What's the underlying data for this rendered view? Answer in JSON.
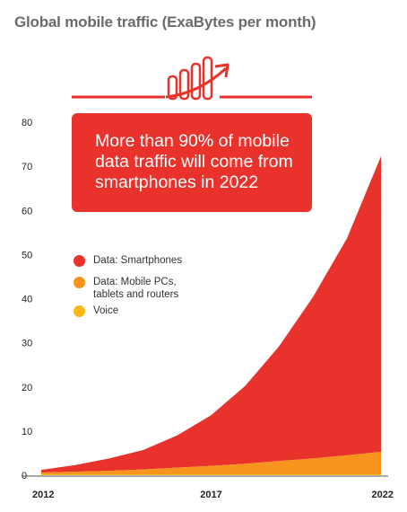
{
  "colors": {
    "smartphones": "#e8322b",
    "mobile_pcs": "#f7941d",
    "voice": "#fbb817",
    "icon": "#e8322b"
  },
  "icon": "growth-bar-chart-icon",
  "callout": {
    "text": "More than 90% of mobile data traffic will come from smartphones in 2022"
  },
  "chart_data": {
    "type": "area",
    "title": "Global mobile traffic (ExaBytes per month)",
    "xlabel": "",
    "ylabel": "",
    "x": [
      2012,
      2013,
      2014,
      2015,
      2016,
      2017,
      2018,
      2019,
      2020,
      2021,
      2022
    ],
    "x_tick_labels": [
      "2012",
      "2017",
      "2022"
    ],
    "y_tick_labels": [
      "0",
      "10",
      "20",
      "30",
      "40",
      "50",
      "60",
      "70",
      "80"
    ],
    "ylim": [
      0,
      80
    ],
    "stacked": true,
    "legend_position": "left-middle",
    "series": [
      {
        "name": "Voice",
        "values": [
          0.2,
          0.2,
          0.2,
          0.2,
          0.2,
          0.2,
          0.2,
          0.2,
          0.2,
          0.2,
          0.2
        ]
      },
      {
        "name": "Data: Mobile PCs,\ntablets and routers",
        "values": [
          0.4,
          0.6,
          0.8,
          1.1,
          1.5,
          1.9,
          2.4,
          3.0,
          3.6,
          4.3,
          5.1
        ]
      },
      {
        "name": "Data: Smartphones",
        "values": [
          0.6,
          1.5,
          2.8,
          4.4,
          7.3,
          11.5,
          17.6,
          26.0,
          36.6,
          49.2,
          67.0
        ]
      }
    ]
  }
}
